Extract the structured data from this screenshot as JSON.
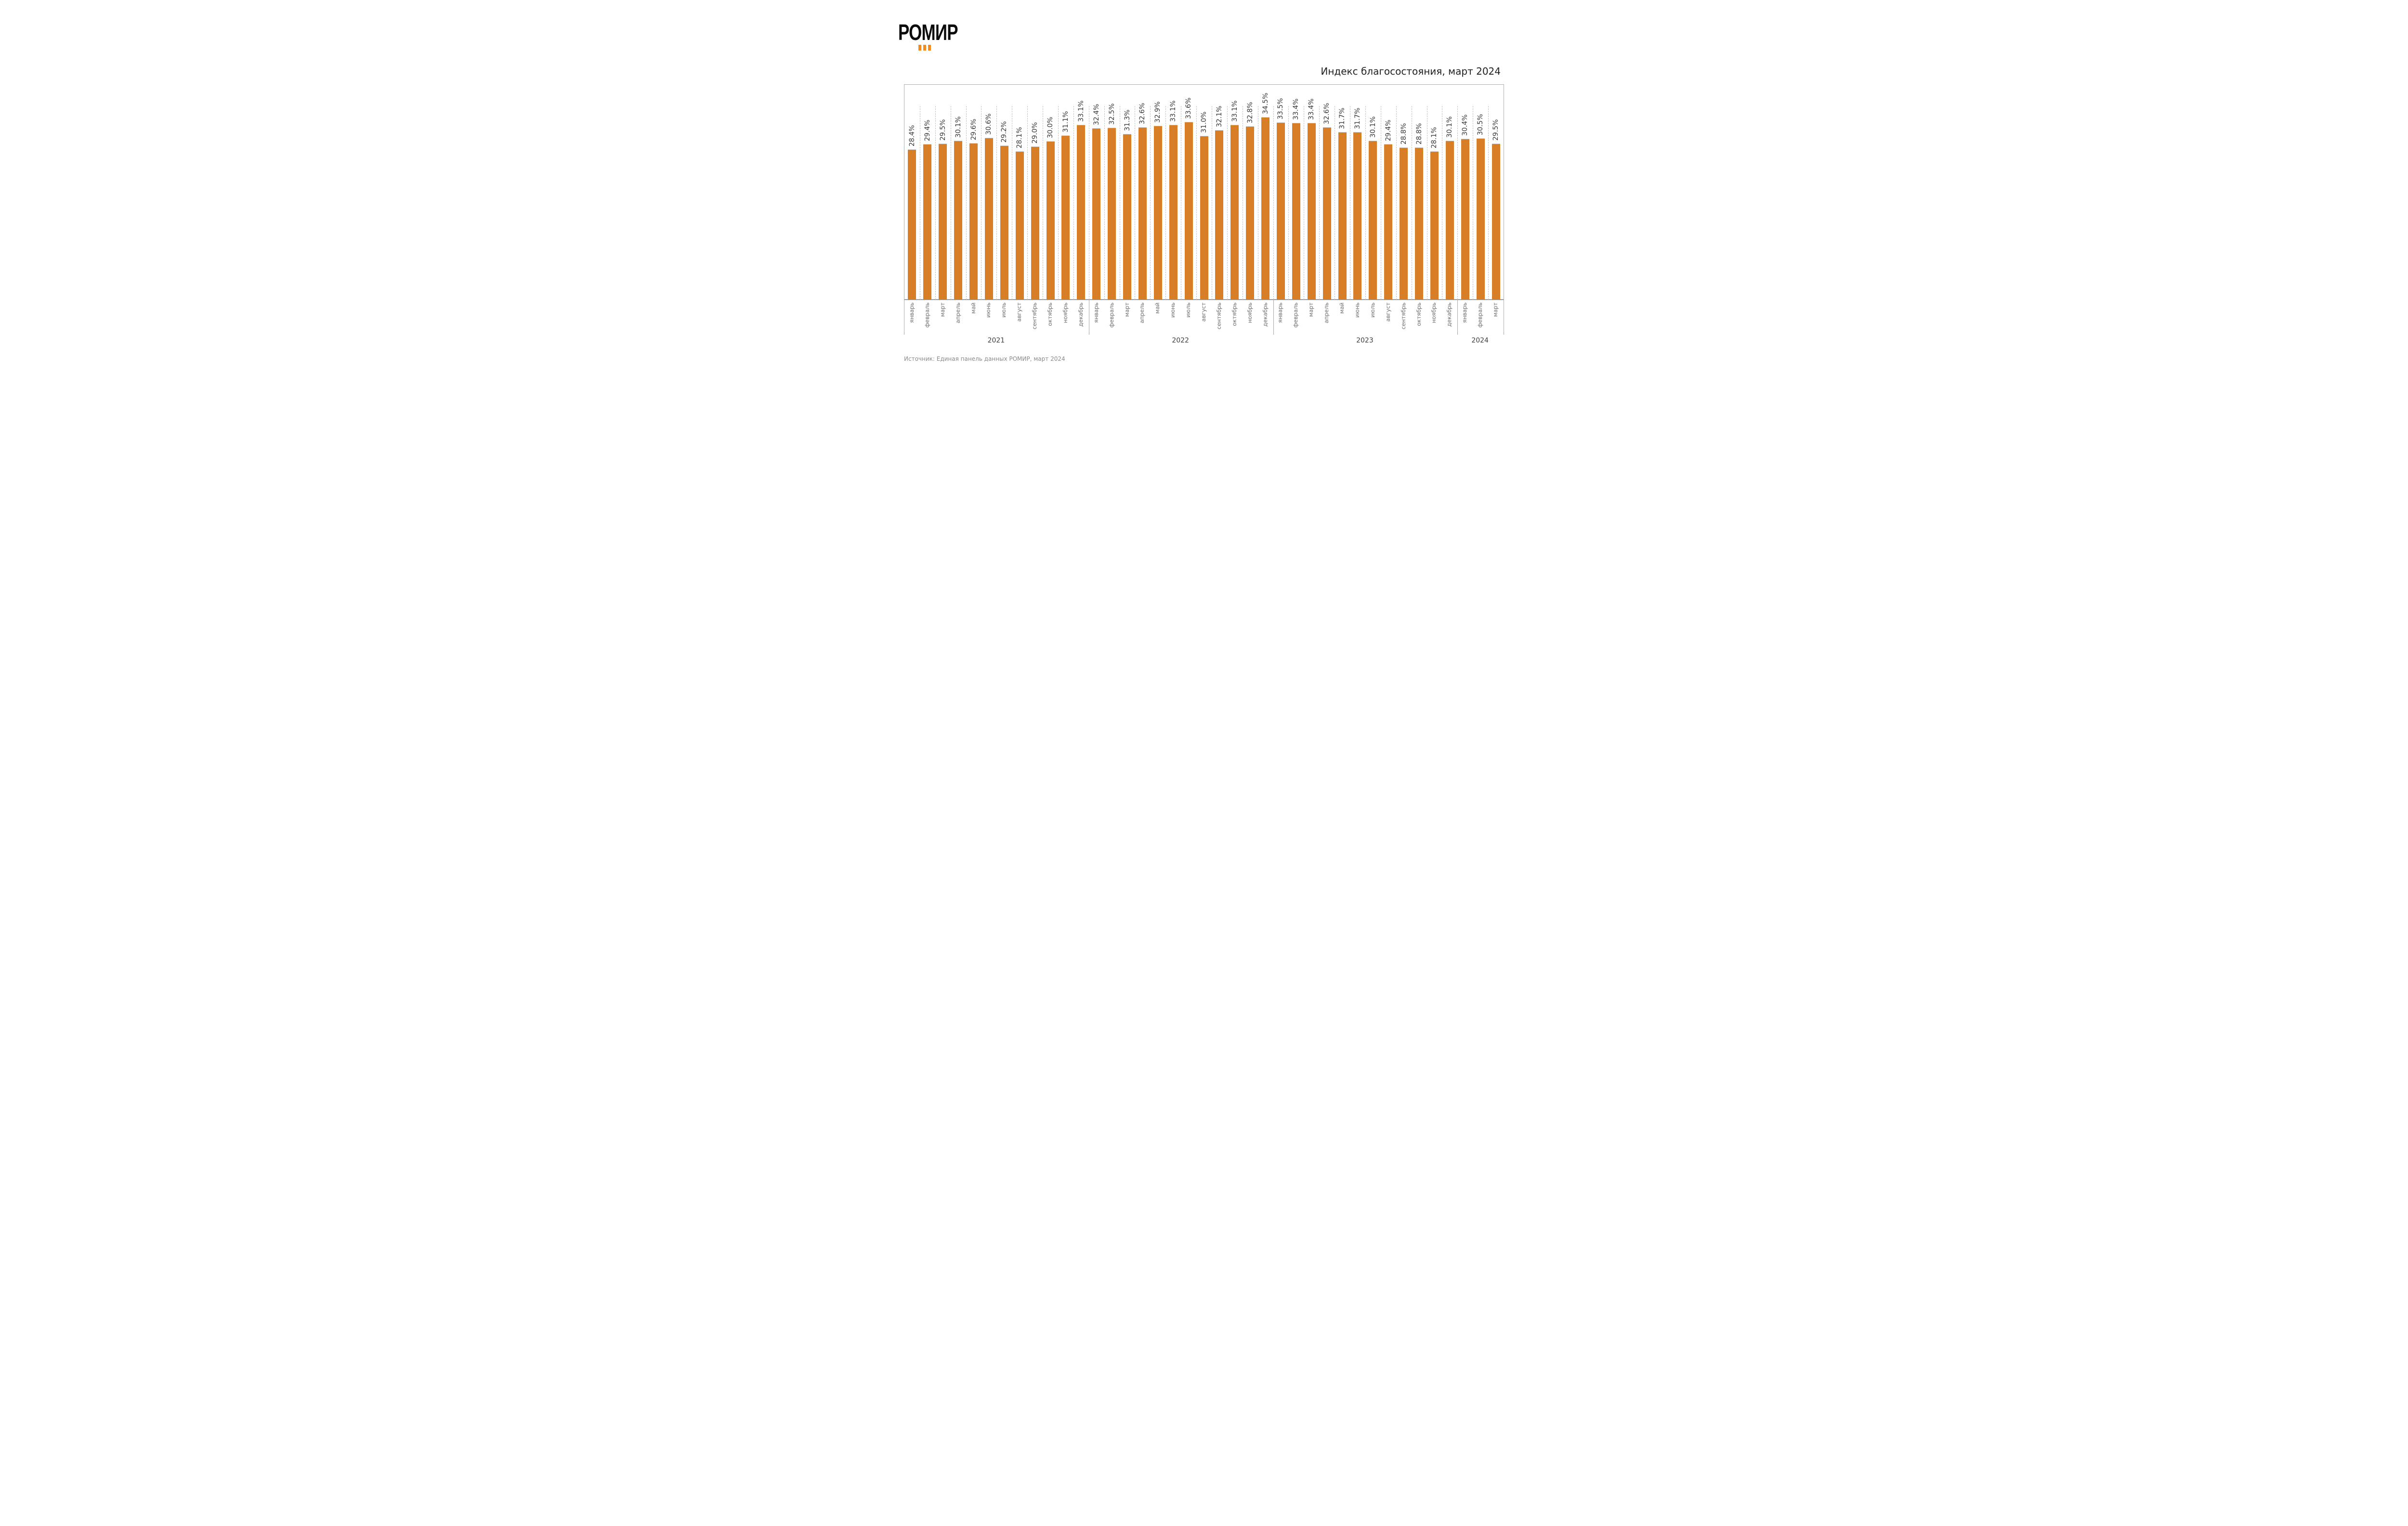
{
  "logo": {
    "text": "РОМИР",
    "accent_color": "#F28A1E"
  },
  "header": {
    "title": "Индекс благосостояния, март 2024"
  },
  "footer": {
    "source": "Источник: Единая панель данных РОМИР, март 2024"
  },
  "chart_data": {
    "type": "bar",
    "title": "Индекс благосостояния, март 2024",
    "xlabel": "",
    "ylabel": "",
    "unit": "%",
    "bar_color": "#D87E27",
    "value_label_rotation": 90,
    "grid": "dashed vertical lines between bars",
    "legend": "none",
    "ylim": [
      0,
      40.7
    ],
    "sections": [
      {
        "year": "2021",
        "months": [
          "январь",
          "февраль",
          "март",
          "апрель",
          "май",
          "июнь",
          "июль",
          "август",
          "сентябрь",
          "октябрь",
          "ноябрь",
          "декабрь"
        ],
        "values": [
          28.4,
          29.4,
          29.5,
          30.1,
          29.6,
          30.6,
          29.2,
          28.1,
          29.0,
          30.0,
          31.1,
          33.1
        ]
      },
      {
        "year": "2022",
        "months": [
          "январь",
          "февраль",
          "март",
          "апрель",
          "май",
          "июнь",
          "июль",
          "август",
          "сентябрь",
          "октябрь",
          "ноябрь",
          "декабрь"
        ],
        "values": [
          32.4,
          32.5,
          31.3,
          32.6,
          32.9,
          33.1,
          33.6,
          31.0,
          32.1,
          33.1,
          32.8,
          34.5
        ]
      },
      {
        "year": "2023",
        "months": [
          "январь",
          "февраль",
          "март",
          "апрель",
          "май",
          "июнь",
          "июль",
          "август",
          "сентябрь",
          "октябрь",
          "ноябрь",
          "декабрь"
        ],
        "values": [
          33.5,
          33.4,
          33.4,
          32.6,
          31.7,
          31.7,
          30.1,
          29.4,
          28.8,
          28.8,
          28.1,
          30.1
        ]
      },
      {
        "year": "2024",
        "months": [
          "январь",
          "февраль",
          "март"
        ],
        "values": [
          30.4,
          30.5,
          29.5
        ]
      }
    ]
  }
}
